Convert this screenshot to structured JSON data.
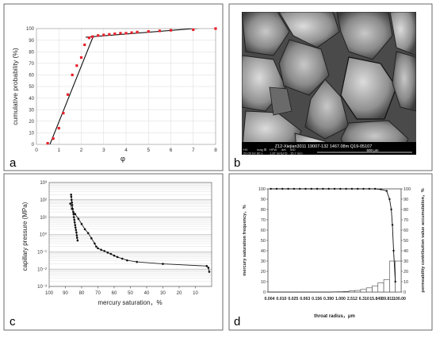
{
  "panels": {
    "a": {
      "letter": "a"
    },
    "b": {
      "letter": "b"
    },
    "c": {
      "letter": "c"
    },
    "d": {
      "letter": "d"
    }
  },
  "chart_data": [
    {
      "id": "a",
      "type": "scatter",
      "xlabel": "φ",
      "ylabel": "cumulative probability (%)",
      "xlim": [
        0,
        8
      ],
      "ylim": [
        0,
        100
      ],
      "xticks": [
        "0",
        "1",
        "2",
        "3",
        "4",
        "5",
        "6",
        "7",
        "8"
      ],
      "yticks": [
        "0",
        "10",
        "20",
        "30",
        "40",
        "50",
        "60",
        "70",
        "80",
        "90",
        "100"
      ],
      "points": {
        "x": [
          0.5,
          0.75,
          1.0,
          1.2,
          1.4,
          1.6,
          1.8,
          2.0,
          2.15,
          2.35,
          2.5,
          2.75,
          3.0,
          3.25,
          3.5,
          3.75,
          4.0,
          4.25,
          4.5,
          5.0,
          5.5,
          6.0,
          7.0,
          8.0
        ],
        "y": [
          1,
          5,
          14,
          27,
          43,
          60,
          68,
          75,
          86,
          92,
          93,
          94,
          94.5,
          95,
          95.5,
          96,
          96,
          96.5,
          97,
          97.5,
          98,
          98.5,
          99,
          100
        ]
      },
      "fit_lines": [
        {
          "x": [
            0.6,
            2.55
          ],
          "y": [
            0,
            94
          ]
        },
        {
          "x": [
            2.2,
            8.0
          ],
          "y": [
            92.5,
            101.5
          ]
        }
      ],
      "marker_color": "#e8202a",
      "grid": true
    },
    {
      "id": "b",
      "type": "image",
      "caption": "Z12-Xiejian3011  19007-132  1467.08m  Q19-05107",
      "info_headers": [
        "HV",
        "mag ⊞",
        "HFW",
        "det",
        "WD"
      ],
      "info_values": [
        "20.00 kV",
        "80 x",
        "1.87 mm",
        "LFD",
        "15.7 mm"
      ],
      "scale_label": "500 μm"
    },
    {
      "id": "c",
      "type": "line",
      "xlabel": "mercury saturation，%",
      "ylabel": "capillary pressure (MPa)",
      "xlim": [
        100,
        0
      ],
      "ylim": [
        0.001,
        1000
      ],
      "yscale": "log",
      "xticks": [
        "100",
        "90",
        "80",
        "70",
        "60",
        "50",
        "40",
        "30",
        "20",
        "10"
      ],
      "yticks": [
        "10⁻³",
        "10⁻²",
        "10⁻¹",
        "10⁰",
        "10¹",
        "10²",
        "10³"
      ],
      "series": [
        {
          "x": [
            86.5,
            86.4,
            86.2,
            86,
            85.8,
            85.5,
            85.2,
            85,
            84.8,
            84.5,
            84.3,
            84,
            83.8,
            83.5,
            83.2,
            83,
            82.8,
            82.5
          ],
          "y": [
            200,
            150,
            100,
            70,
            50,
            30,
            20,
            15,
            10,
            7,
            5,
            3.5,
            2.5,
            1.8,
            1.3,
            0.9,
            0.65,
            0.45
          ]
        },
        {
          "x": [
            87,
            86,
            84,
            82,
            80,
            78,
            76,
            74,
            72,
            71,
            70,
            68,
            66,
            64,
            62,
            60,
            58,
            55,
            52,
            46,
            30,
            3,
            2,
            1.5
          ],
          "y": [
            60,
            30,
            15,
            8,
            4,
            2,
            1.2,
            0.6,
            0.3,
            0.2,
            0.16,
            0.13,
            0.11,
            0.09,
            0.075,
            0.06,
            0.05,
            0.04,
            0.032,
            0.026,
            0.02,
            0.015,
            0.012,
            0.007
          ]
        }
      ],
      "grid": true
    },
    {
      "id": "d",
      "type": "bar",
      "xlabel": "throat radius，μm",
      "ylabel": "mercury saturation frequency，%",
      "y2label": "permeability contribution value accumulation，%",
      "categories": [
        "0.004",
        "0.010",
        "0.025",
        "0.063",
        "0.156",
        "0.390",
        "1.000",
        "2.512",
        "6.310",
        "15.849",
        "39.811",
        "100.00"
      ],
      "ylim": [
        0,
        100
      ],
      "yticks": [
        "0",
        "10",
        "20",
        "30",
        "40",
        "50",
        "60",
        "70",
        "80",
        "90",
        "100"
      ],
      "y2ticks": [
        "0",
        "10",
        "20",
        "30",
        "40",
        "50",
        "60",
        "70",
        "80",
        "90",
        "100"
      ],
      "bars": [
        0,
        0,
        0,
        0,
        0,
        0,
        0,
        0,
        0,
        0,
        0,
        0.2,
        0.3,
        0.5,
        1,
        1.5,
        2.5,
        4,
        6,
        9,
        12,
        30,
        30
      ],
      "line": {
        "x": [
          0,
          1,
          2,
          3,
          4,
          5,
          6,
          7,
          8,
          9,
          10,
          11,
          12,
          13,
          14,
          15,
          16,
          17,
          18,
          19,
          20,
          20.5,
          20.8,
          21,
          21.2,
          21.5
        ],
        "y": [
          100,
          100,
          100,
          100,
          100,
          100,
          100,
          100,
          100,
          100,
          100,
          100,
          100,
          100,
          100,
          100,
          100,
          100,
          100,
          99.5,
          98,
          90,
          80,
          65,
          40,
          10
        ]
      }
    }
  ]
}
